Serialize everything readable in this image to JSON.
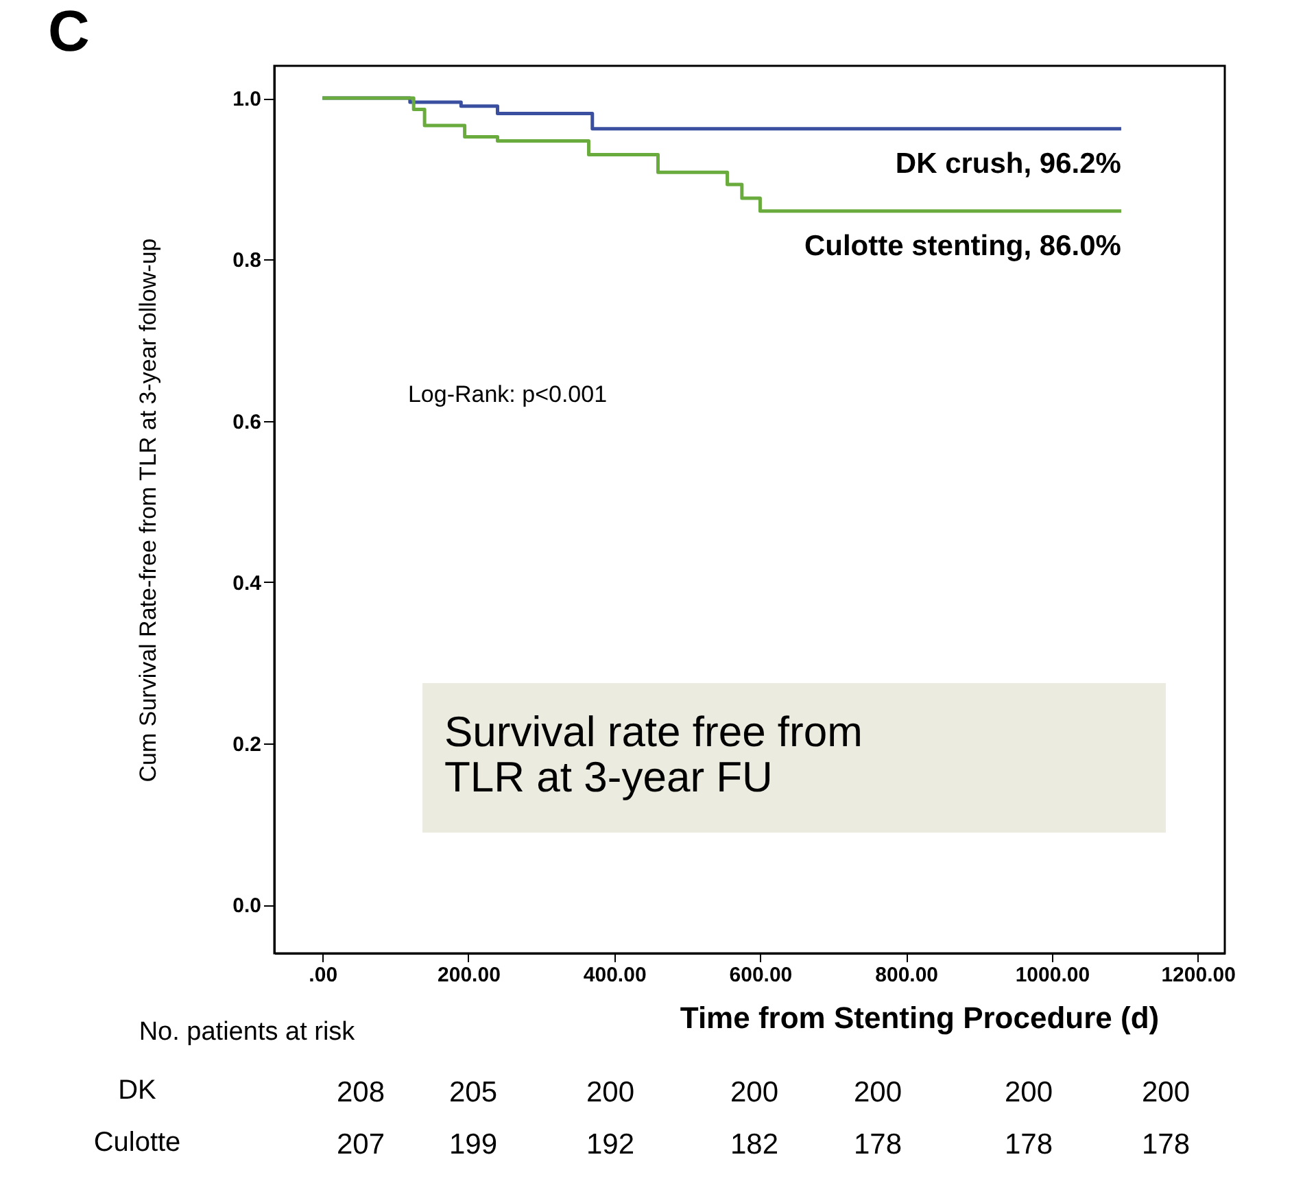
{
  "chart_data": {
    "type": "step",
    "title": "C",
    "xlabel": "Time from Stenting Procedure (d)",
    "ylabel": "Cum Survival Rate-free from TLR at 3-year follow-up",
    "series": [
      {
        "name": "DK crush, 96.2%",
        "color": "#3a4fa0",
        "x": [
          0,
          120,
          190,
          240,
          370,
          1095
        ],
        "values": [
          1.0,
          0.995,
          0.99,
          0.981,
          0.962,
          0.962
        ]
      },
      {
        "name": "Culotte stenting, 86.0%",
        "color": "#6aab3d",
        "x": [
          0,
          125,
          140,
          195,
          240,
          365,
          460,
          555,
          575,
          600,
          1095
        ],
        "values": [
          1.0,
          0.986,
          0.966,
          0.952,
          0.947,
          0.93,
          0.908,
          0.893,
          0.876,
          0.86,
          0.86
        ]
      }
    ],
    "xlim": [
      -66,
      1237
    ],
    "xticks": [
      {
        "value": 0,
        "label": ".00"
      },
      {
        "value": 200,
        "label": "200.00"
      },
      {
        "value": 400,
        "label": "400.00"
      },
      {
        "value": 600,
        "label": "600.00"
      },
      {
        "value": 800,
        "label": "800.00"
      },
      {
        "value": 1000,
        "label": "1000.00"
      },
      {
        "value": 1200,
        "label": "1200.00"
      }
    ],
    "ylim": [
      -0.06,
      1.04
    ],
    "yticks": [
      {
        "value": 0,
        "label": "0.0"
      },
      {
        "value": 0.2,
        "label": "0.2"
      },
      {
        "value": 0.4,
        "label": "0.4"
      },
      {
        "value": 0.6,
        "label": "0.6"
      },
      {
        "value": 0.8,
        "label": "0.8"
      },
      {
        "value": 1,
        "label": "1.0"
      }
    ],
    "grid": false,
    "legend": false,
    "annotations": [
      "Log-Rank: p<0.001",
      "Survival rate free from TLR at 3-year FU",
      "No. patients at risk",
      "DK",
      "208",
      "205",
      "200",
      "200",
      "200",
      "200",
      "200",
      "Culotte",
      "207",
      "199",
      "192",
      "182",
      "178",
      "178",
      "178"
    ]
  }
}
